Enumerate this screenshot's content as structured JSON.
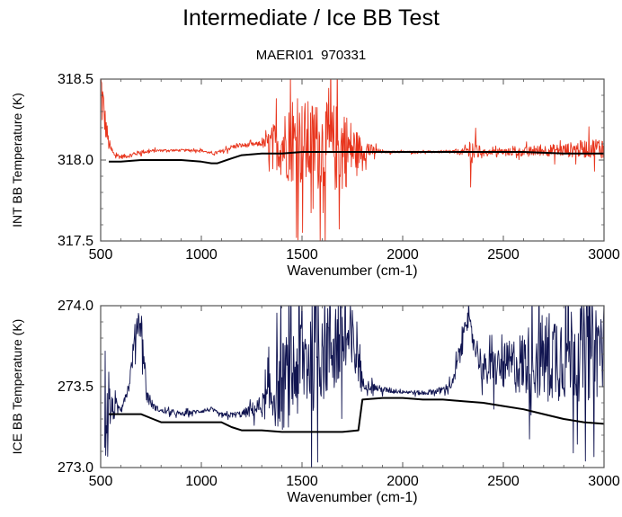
{
  "title": "Intermediate / Ice BB Test",
  "subtitle": "MAERI01  970331",
  "colors": {
    "noisy_top": "#e8341c",
    "noisy_bottom": "#101450",
    "reference": "#000000",
    "frame": "#555555"
  },
  "chart_data": [
    {
      "type": "line",
      "xlabel": "Wavenumber (cm-1)",
      "ylabel": "INT BB Temperature (K)",
      "xlim": [
        500,
        3000
      ],
      "ylim": [
        317.5,
        318.5
      ],
      "xticks": [
        "500",
        "1000",
        "1500",
        "2000",
        "2500",
        "3000"
      ],
      "yticks": [
        "317.5",
        "318.0",
        "318.5"
      ],
      "grid": false,
      "series": [
        {
          "role": "noisy",
          "color": "#e8341c",
          "x": [
            500,
            520,
            540,
            560,
            600,
            650,
            700,
            800,
            900,
            1000,
            1050,
            1100,
            1150,
            1200,
            1300,
            1400,
            1500,
            1600,
            1700,
            1800,
            1900,
            2000,
            2100,
            2200,
            2300,
            2340,
            2360,
            2400,
            2500,
            2600,
            2700,
            2800,
            2900,
            3000
          ],
          "y": [
            318.45,
            318.25,
            318.1,
            318.04,
            318.02,
            318.03,
            318.05,
            318.06,
            318.06,
            318.06,
            318.04,
            318.05,
            318.08,
            318.09,
            318.1,
            318.1,
            318.1,
            318.08,
            318.07,
            318.06,
            318.05,
            318.05,
            318.05,
            318.05,
            318.05,
            318.06,
            318.05,
            318.05,
            318.05,
            318.05,
            318.06,
            318.06,
            318.07,
            318.08
          ],
          "noise": [
            0.35,
            0.15,
            0.06,
            0.03,
            0.02,
            0.02,
            0.02,
            0.01,
            0.01,
            0.01,
            0.01,
            0.02,
            0.02,
            0.02,
            0.02,
            0.3,
            0.4,
            0.4,
            0.4,
            0.1,
            0.01,
            0.01,
            0.01,
            0.01,
            0.03,
            0.15,
            0.1,
            0.02,
            0.03,
            0.04,
            0.05,
            0.06,
            0.08,
            0.1
          ]
        },
        {
          "role": "reference",
          "color": "#000000",
          "x": [
            540,
            600,
            700,
            800,
            900,
            1000,
            1050,
            1080,
            1150,
            1200,
            1300,
            1400,
            1500,
            1600,
            1700,
            1800,
            2000,
            2200,
            2400,
            2600,
            2800,
            3000
          ],
          "y": [
            317.99,
            317.99,
            318.0,
            318.0,
            318.0,
            317.99,
            317.98,
            317.98,
            318.01,
            318.03,
            318.04,
            318.04,
            318.05,
            318.05,
            318.05,
            318.05,
            318.05,
            318.05,
            318.05,
            318.05,
            318.04,
            318.04
          ],
          "noise": []
        }
      ]
    },
    {
      "type": "line",
      "xlabel": "Wavenumber (cm-1)",
      "ylabel": "ICE BB Temperature (K)",
      "xlim": [
        500,
        3000
      ],
      "ylim": [
        273.0,
        274.0
      ],
      "xticks": [
        "500",
        "1000",
        "1500",
        "2000",
        "2500",
        "3000"
      ],
      "yticks": [
        "273.0",
        "273.5",
        "274.0"
      ],
      "grid": false,
      "series": [
        {
          "role": "noisy",
          "color": "#101450",
          "x": [
            520,
            560,
            600,
            640,
            680,
            700,
            730,
            760,
            800,
            900,
            1000,
            1050,
            1100,
            1200,
            1300,
            1400,
            1500,
            1600,
            1700,
            1780,
            1800,
            1900,
            2000,
            2100,
            2200,
            2250,
            2300,
            2310,
            2350,
            2400,
            2500,
            2600,
            2700,
            2800,
            2900,
            3000
          ],
          "y": [
            273.35,
            273.35,
            273.37,
            273.5,
            273.9,
            273.9,
            273.45,
            273.38,
            273.35,
            273.33,
            273.35,
            273.36,
            273.32,
            273.33,
            273.38,
            273.5,
            273.65,
            273.75,
            273.8,
            273.7,
            273.52,
            273.48,
            273.47,
            273.46,
            273.48,
            273.52,
            273.8,
            273.95,
            273.8,
            273.6,
            273.62,
            273.65,
            273.68,
            273.72,
            273.72,
            273.75
          ],
          "noise": [
            0.3,
            0.1,
            0.04,
            0.05,
            0.15,
            0.15,
            0.08,
            0.03,
            0.02,
            0.02,
            0.02,
            0.02,
            0.02,
            0.03,
            0.1,
            0.4,
            0.5,
            0.5,
            0.5,
            0.3,
            0.05,
            0.03,
            0.02,
            0.02,
            0.03,
            0.05,
            0.15,
            0.1,
            0.1,
            0.15,
            0.2,
            0.3,
            0.4,
            0.45,
            0.45,
            0.45
          ]
        },
        {
          "role": "reference",
          "color": "#000000",
          "x": [
            540,
            600,
            700,
            760,
            800,
            900,
            1000,
            1100,
            1150,
            1200,
            1300,
            1400,
            1500,
            1600,
            1700,
            1780,
            1800,
            1900,
            2000,
            2100,
            2200,
            2300,
            2400,
            2500,
            2600,
            2700,
            2800,
            2900,
            3000
          ],
          "y": [
            273.33,
            273.33,
            273.33,
            273.3,
            273.28,
            273.28,
            273.28,
            273.28,
            273.25,
            273.23,
            273.23,
            273.22,
            273.22,
            273.22,
            273.22,
            273.23,
            273.42,
            273.43,
            273.43,
            273.42,
            273.42,
            273.41,
            273.4,
            273.38,
            273.36,
            273.33,
            273.3,
            273.28,
            273.27
          ],
          "noise": []
        }
      ]
    }
  ]
}
